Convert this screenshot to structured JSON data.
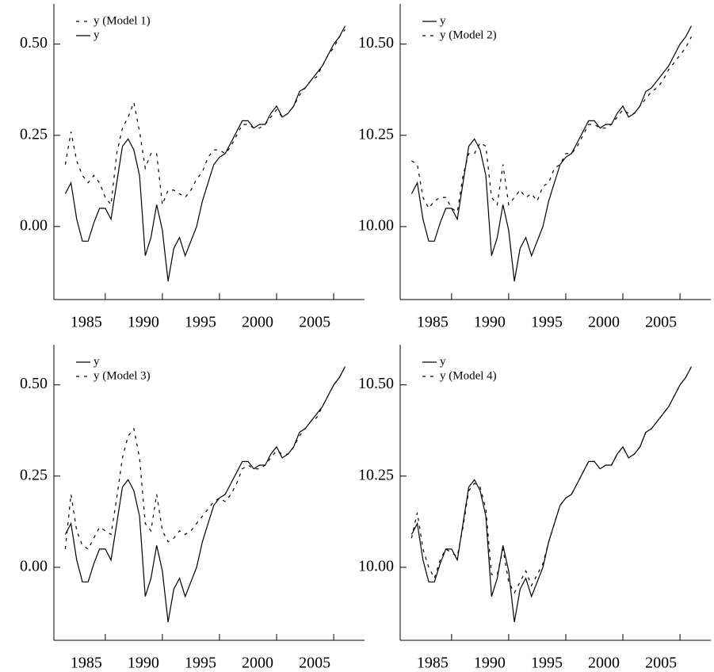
{
  "chart_data": [
    {
      "type": "line",
      "legend": "upper left",
      "x": [
        1981.5,
        1982,
        1982.5,
        1983,
        1983.5,
        1984,
        1984.5,
        1985,
        1985.5,
        1986,
        1986.5,
        1987,
        1987.5,
        1988,
        1988.5,
        1989,
        1989.5,
        1990,
        1990.5,
        1991,
        1991.5,
        1992,
        1992.5,
        1993,
        1993.5,
        1994,
        1994.5,
        1995,
        1995.5,
        1996,
        1996.5,
        1997,
        1997.5,
        1998,
        1998.5,
        1999,
        1999.5,
        2000,
        2000.5,
        2001,
        2001.5,
        2002,
        2002.5,
        2003,
        2003.5,
        2004,
        2004.5,
        2005,
        2005.5,
        2006
      ],
      "xlim": [
        1980.5,
        2007.7
      ],
      "xticks": [
        1985,
        1990,
        1995,
        2000,
        2005
      ],
      "ylim": [
        -0.2,
        0.61
      ],
      "yticks": [
        {
          "value": 0,
          "label": "0.00"
        },
        0.25,
        {
          "value": 0.5,
          "label": "0.50"
        }
      ],
      "series": [
        {
          "name": "y (Model 1)",
          "color": "#000000",
          "linestyle": "dashed",
          "values": [
            0.17,
            0.26,
            0.18,
            0.14,
            0.12,
            0.14,
            0.12,
            0.08,
            0.06,
            0.2,
            0.27,
            0.3,
            0.34,
            0.26,
            0.16,
            0.2,
            0.2,
            0.06,
            0.1,
            0.1,
            0.09,
            0.08,
            0.1,
            0.13,
            0.15,
            0.19,
            0.21,
            0.21,
            0.2,
            0.22,
            0.25,
            0.28,
            0.28,
            0.27,
            0.27,
            0.28,
            0.3,
            0.32,
            0.3,
            0.31,
            0.33,
            0.36,
            0.38,
            0.4,
            0.41,
            0.44,
            0.47,
            0.49,
            0.52,
            0.54
          ]
        },
        {
          "name": "y",
          "color": "#000000",
          "linestyle": "solid",
          "values": [
            0.09,
            0.12,
            0.02,
            -0.04,
            -0.04,
            0.01,
            0.05,
            0.05,
            0.02,
            0.12,
            0.22,
            0.24,
            0.21,
            0.14,
            -0.08,
            -0.03,
            0.06,
            -0.01,
            -0.15,
            -0.06,
            -0.03,
            -0.08,
            -0.04,
            0,
            0.07,
            0.12,
            0.17,
            0.19,
            0.2,
            0.23,
            0.26,
            0.29,
            0.29,
            0.27,
            0.28,
            0.28,
            0.31,
            0.33,
            0.3,
            0.31,
            0.33,
            0.37,
            0.38,
            0.4,
            0.42,
            0.44,
            0.47,
            0.5,
            0.52,
            0.55
          ]
        }
      ]
    },
    {
      "type": "line",
      "legend": "upper left",
      "x": [
        1981.5,
        1982,
        1982.5,
        1983,
        1983.5,
        1984,
        1984.5,
        1985,
        1985.5,
        1986,
        1986.5,
        1987,
        1987.5,
        1988,
        1988.5,
        1989,
        1989.5,
        1990,
        1990.5,
        1991,
        1991.5,
        1992,
        1992.5,
        1993,
        1993.5,
        1994,
        1994.5,
        1995,
        1995.5,
        1996,
        1996.5,
        1997,
        1997.5,
        1998,
        1998.5,
        1999,
        1999.5,
        2000,
        2000.5,
        2001,
        2001.5,
        2002,
        2002.5,
        2003,
        2003.5,
        2004,
        2004.5,
        2005,
        2005.5,
        2006
      ],
      "xlim": [
        1980.5,
        2007.7
      ],
      "xticks": [
        1985,
        1990,
        1995,
        2000,
        2005
      ],
      "ylim": [
        9.8,
        10.61
      ],
      "yticks": [
        {
          "value": 10,
          "label": "10.00"
        },
        10.25,
        {
          "value": 10.5,
          "label": "10.50"
        }
      ],
      "series": [
        {
          "name": "y",
          "color": "#000000",
          "linestyle": "solid",
          "values": [
            10.09,
            10.12,
            10.02,
            9.96,
            9.96,
            10.01,
            10.05,
            10.05,
            10.02,
            10.12,
            10.22,
            10.24,
            10.21,
            10.14,
            9.92,
            9.97,
            10.06,
            9.99,
            9.85,
            9.94,
            9.97,
            9.92,
            9.96,
            10,
            10.07,
            10.12,
            10.17,
            10.19,
            10.2,
            10.23,
            10.26,
            10.29,
            10.29,
            10.27,
            10.28,
            10.28,
            10.31,
            10.33,
            10.3,
            10.31,
            10.33,
            10.37,
            10.38,
            10.4,
            10.42,
            10.44,
            10.47,
            10.5,
            10.52,
            10.55
          ]
        },
        {
          "name": "y (Model 2)",
          "color": "#000000",
          "linestyle": "dashed",
          "values": [
            10.18,
            10.17,
            10.08,
            10.05,
            10.07,
            10.08,
            10.08,
            10.05,
            10.04,
            10.14,
            10.2,
            10.2,
            10.23,
            10.22,
            10.08,
            10.06,
            10.17,
            10.06,
            10.08,
            10.1,
            10.08,
            10.09,
            10.07,
            10.11,
            10.12,
            10.16,
            10.17,
            10.2,
            10.2,
            10.22,
            10.25,
            10.28,
            10.28,
            10.27,
            10.27,
            10.28,
            10.3,
            10.32,
            10.31,
            10.31,
            10.33,
            10.35,
            10.37,
            10.38,
            10.4,
            10.43,
            10.45,
            10.47,
            10.49,
            10.52
          ]
        }
      ]
    },
    {
      "type": "line",
      "legend": "upper left",
      "x": [
        1981.5,
        1982,
        1982.5,
        1983,
        1983.5,
        1984,
        1984.5,
        1985,
        1985.5,
        1986,
        1986.5,
        1987,
        1987.5,
        1988,
        1988.5,
        1989,
        1989.5,
        1990,
        1990.5,
        1991,
        1991.5,
        1992,
        1992.5,
        1993,
        1993.5,
        1994,
        1994.5,
        1995,
        1995.5,
        1996,
        1996.5,
        1997,
        1997.5,
        1998,
        1998.5,
        1999,
        1999.5,
        2000,
        2000.5,
        2001,
        2001.5,
        2002,
        2002.5,
        2003,
        2003.5,
        2004,
        2004.5,
        2005,
        2005.5,
        2006
      ],
      "xlim": [
        1980.5,
        2007.7
      ],
      "xticks": [
        1985,
        1990,
        1995,
        2000,
        2005
      ],
      "ylim": [
        -0.2,
        0.61
      ],
      "yticks": [
        {
          "value": 0,
          "label": "0.00"
        },
        0.25,
        {
          "value": 0.5,
          "label": "0.50"
        }
      ],
      "series": [
        {
          "name": "y",
          "color": "#000000",
          "linestyle": "solid",
          "values": [
            0.09,
            0.12,
            0.02,
            -0.04,
            -0.04,
            0.01,
            0.05,
            0.05,
            0.02,
            0.12,
            0.22,
            0.24,
            0.21,
            0.14,
            -0.08,
            -0.03,
            0.06,
            -0.01,
            -0.15,
            -0.06,
            -0.03,
            -0.08,
            -0.04,
            0,
            0.07,
            0.12,
            0.17,
            0.19,
            0.2,
            0.23,
            0.26,
            0.29,
            0.29,
            0.27,
            0.28,
            0.28,
            0.31,
            0.33,
            0.3,
            0.31,
            0.33,
            0.37,
            0.38,
            0.4,
            0.42,
            0.44,
            0.47,
            0.5,
            0.52,
            0.55
          ]
        },
        {
          "name": "y (Model 3)",
          "color": "#000000",
          "linestyle": "dashed",
          "values": [
            0.05,
            0.2,
            0.1,
            0.06,
            0.05,
            0.08,
            0.11,
            0.1,
            0.09,
            0.19,
            0.3,
            0.36,
            0.38,
            0.3,
            0.12,
            0.1,
            0.2,
            0.1,
            0.07,
            0.08,
            0.1,
            0.09,
            0.1,
            0.12,
            0.14,
            0.16,
            0.18,
            0.19,
            0.18,
            0.2,
            0.23,
            0.27,
            0.28,
            0.27,
            0.27,
            0.28,
            0.3,
            0.32,
            0.31,
            0.31,
            0.33,
            0.36,
            0.38,
            0.4,
            0.41,
            0.44,
            0.47,
            0.5,
            0.52,
            0.55
          ]
        }
      ]
    },
    {
      "type": "line",
      "legend": "upper left",
      "x": [
        1981.5,
        1982,
        1982.5,
        1983,
        1983.5,
        1984,
        1984.5,
        1985,
        1985.5,
        1986,
        1986.5,
        1987,
        1987.5,
        1988,
        1988.5,
        1989,
        1989.5,
        1990,
        1990.5,
        1991,
        1991.5,
        1992,
        1992.5,
        1993,
        1993.5,
        1994,
        1994.5,
        1995,
        1995.5,
        1996,
        1996.5,
        1997,
        1997.5,
        1998,
        1998.5,
        1999,
        1999.5,
        2000,
        2000.5,
        2001,
        2001.5,
        2002,
        2002.5,
        2003,
        2003.5,
        2004,
        2004.5,
        2005,
        2005.5,
        2006
      ],
      "xlim": [
        1980.5,
        2007.7
      ],
      "xticks": [
        1985,
        1990,
        1995,
        2000,
        2005
      ],
      "ylim": [
        9.8,
        10.61
      ],
      "yticks": [
        {
          "value": 10,
          "label": "10.00"
        },
        10.25,
        {
          "value": 10.5,
          "label": "10.50"
        }
      ],
      "series": [
        {
          "name": "y",
          "color": "#000000",
          "linestyle": "solid",
          "values": [
            10.09,
            10.12,
            10.02,
            9.96,
            9.96,
            10.01,
            10.05,
            10.05,
            10.02,
            10.12,
            10.22,
            10.24,
            10.21,
            10.14,
            9.92,
            9.97,
            10.06,
            9.99,
            9.85,
            9.94,
            9.97,
            9.92,
            9.96,
            10,
            10.07,
            10.12,
            10.17,
            10.19,
            10.2,
            10.23,
            10.26,
            10.29,
            10.29,
            10.27,
            10.28,
            10.28,
            10.31,
            10.33,
            10.3,
            10.31,
            10.33,
            10.37,
            10.38,
            10.4,
            10.42,
            10.44,
            10.47,
            10.5,
            10.52,
            10.55
          ]
        },
        {
          "name": "y (Model 4)",
          "color": "#000000",
          "linestyle": "dashed",
          "values": [
            10.08,
            10.15,
            10.05,
            10,
            9.97,
            10.02,
            10.05,
            10.04,
            10.03,
            10.11,
            10.21,
            10.23,
            10.22,
            10.16,
            9.98,
            9.98,
            10.05,
            9.96,
            9.93,
            9.96,
            9.99,
            9.95,
            9.98,
            10.01,
            10.07,
            10.12,
            10.17,
            10.19,
            10.2,
            10.23,
            10.26,
            10.29,
            10.29,
            10.27,
            10.28,
            10.28,
            10.31,
            10.33,
            10.3,
            10.31,
            10.33,
            10.37,
            10.38,
            10.4,
            10.42,
            10.44,
            10.47,
            10.5,
            10.52,
            10.55
          ]
        }
      ]
    }
  ]
}
